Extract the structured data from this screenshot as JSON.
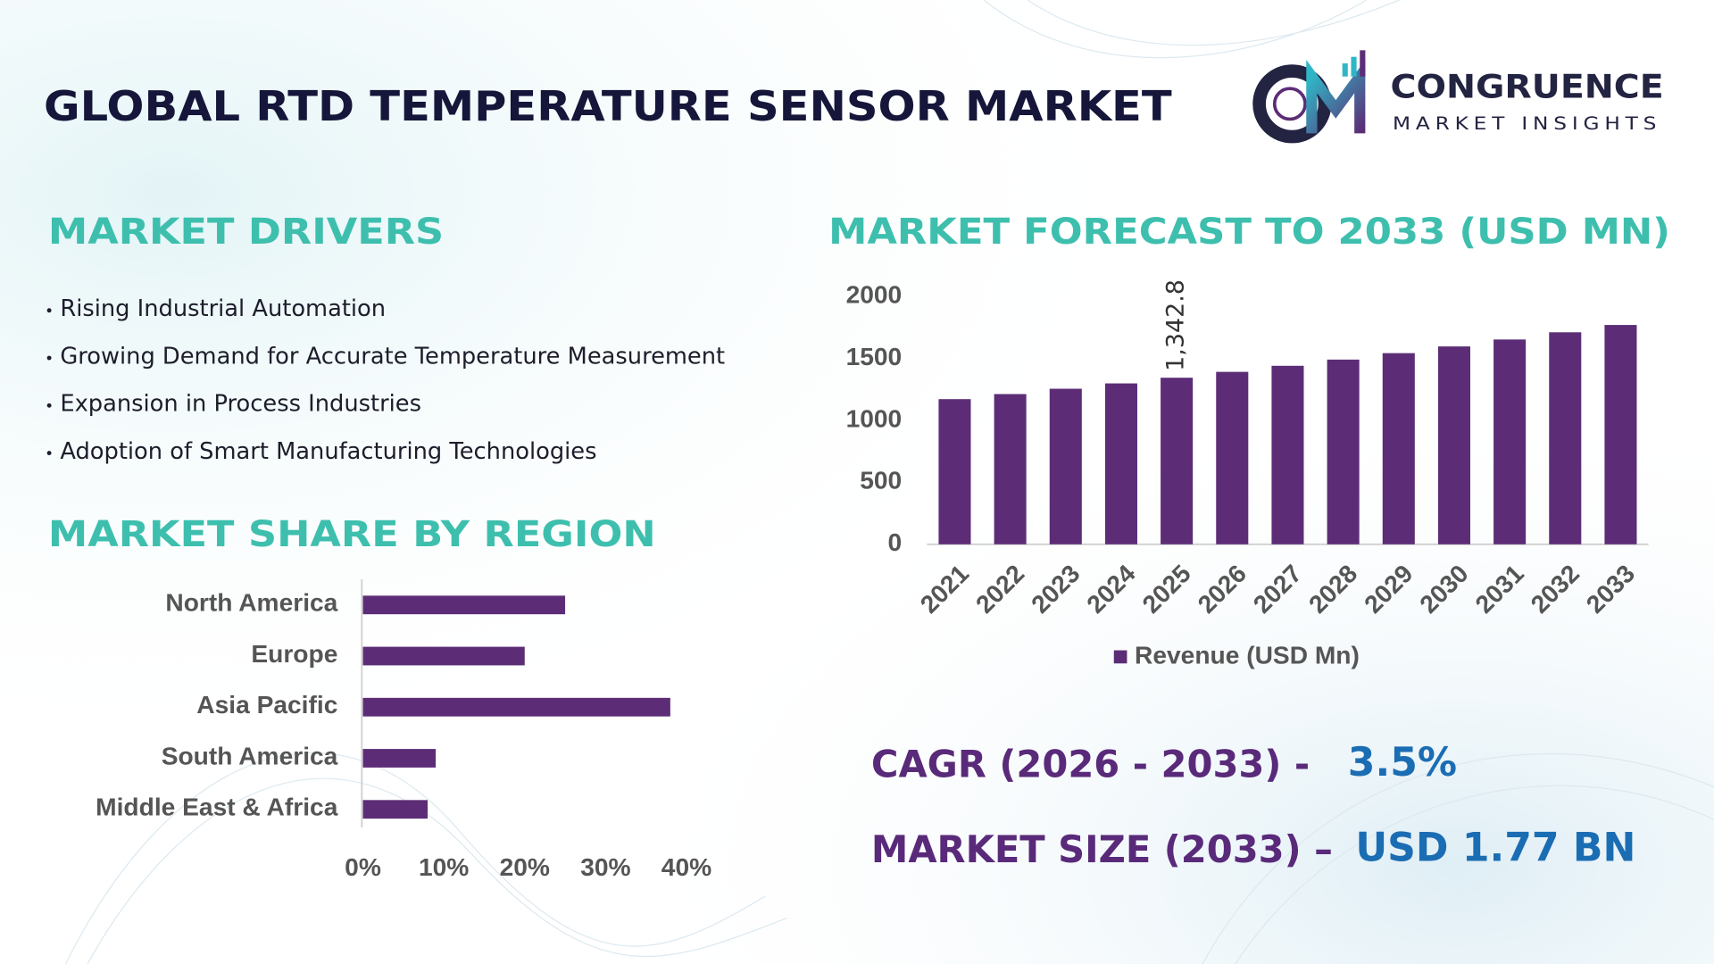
{
  "header": {
    "title": "GLOBAL RTD TEMPERATURE SENSOR MARKET",
    "logo_name": "CONGRUENCE",
    "logo_tagline": "MARKET INSIGHTS"
  },
  "drivers": {
    "title": "MARKET DRIVERS",
    "items": [
      "Rising Industrial Automation",
      "Growing Demand for Accurate Temperature Measurement",
      "Expansion in Process Industries",
      "Adoption of Smart Manufacturing Technologies"
    ]
  },
  "stats": [
    {
      "label": "CAGR (2026 - 2033) -",
      "value": "3.5%"
    },
    {
      "label": "MARKET SIZE (2033) –",
      "value": "USD 1.77 BN"
    }
  ],
  "chart_data": [
    {
      "type": "bar",
      "orientation": "vertical",
      "title": "MARKET FORECAST TO 2033 (USD MN)",
      "categories": [
        "2021",
        "2022",
        "2023",
        "2024",
        "2025",
        "2026",
        "2027",
        "2028",
        "2029",
        "2030",
        "2031",
        "2032",
        "2033"
      ],
      "series": [
        {
          "name": "Revenue (USD Mn)",
          "color": "#5c2d76",
          "values": [
            1170,
            1211,
            1254,
            1297,
            1342.8,
            1390,
            1439,
            1489,
            1541,
            1595,
            1651,
            1709,
            1768
          ],
          "value_labels": [
            null,
            null,
            null,
            null,
            "1,342.8",
            null,
            null,
            null,
            null,
            null,
            null,
            null,
            null
          ]
        }
      ],
      "ylim": [
        0,
        2000
      ],
      "yticks": [
        0,
        500,
        1000,
        1500,
        2000
      ],
      "grid": false,
      "legend": "bottom"
    },
    {
      "type": "bar",
      "orientation": "horizontal",
      "title": "MARKET SHARE BY REGION",
      "categories": [
        "North America",
        "Europe",
        "Asia Pacific",
        "South America",
        "Middle East & Africa"
      ],
      "values": [
        25,
        20,
        38,
        9,
        8
      ],
      "color": "#5c2d76",
      "xlim": [
        0,
        40
      ],
      "xticks": [
        {
          "value": 0,
          "label": "0%"
        },
        {
          "value": 10,
          "label": "10%"
        },
        {
          "value": 20,
          "label": "20%"
        },
        {
          "value": 30,
          "label": "30%"
        },
        {
          "value": 40,
          "label": "40%"
        }
      ],
      "grid": false
    }
  ]
}
